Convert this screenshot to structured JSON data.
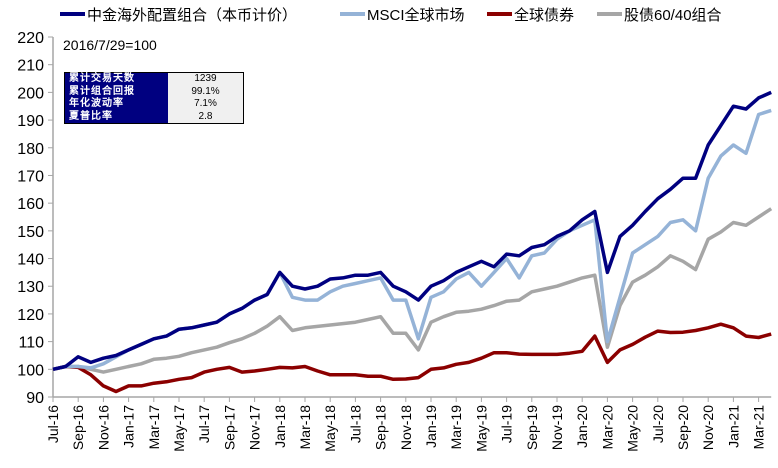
{
  "legend": [
    {
      "label": "中金海外配置组合（本币计价）",
      "color": "#000080"
    },
    {
      "label": "MSCI全球市场",
      "color": "#95b3d7"
    },
    {
      "label": "全球债券",
      "color": "#8b0000"
    },
    {
      "label": "股债60/40组合",
      "color": "#a6a6a6"
    }
  ],
  "annotation": "2016/7/29=100",
  "stats": [
    {
      "label": "累计交易天数",
      "value": "1239"
    },
    {
      "label": "累计组合回报",
      "value": "99.1%"
    },
    {
      "label": "年化波动率",
      "value": "7.1%"
    },
    {
      "label": "夏普比率",
      "value": "2.8"
    }
  ],
  "chart_data": {
    "type": "line",
    "title": "",
    "xlabel": "",
    "ylabel": "",
    "ylim": [
      90,
      220
    ],
    "yticks": [
      "90",
      "100",
      "110",
      "120",
      "130",
      "140",
      "150",
      "160",
      "170",
      "180",
      "190",
      "200",
      "210",
      "220"
    ],
    "xtick_labels": [
      "Jul-16",
      "Sep-16",
      "Nov-16",
      "Jan-17",
      "Mar-17",
      "May-17",
      "Jul-17",
      "Sep-17",
      "Nov-17",
      "Jan-18",
      "Mar-18",
      "May-18",
      "Jul-18",
      "Sep-18",
      "Nov-18",
      "Jan-19",
      "Mar-19",
      "May-19",
      "Jul-19",
      "Sep-19",
      "Nov-19",
      "Jan-20",
      "Mar-20",
      "May-20",
      "Jul-20",
      "Sep-20",
      "Nov-20",
      "Jan-21",
      "Mar-21"
    ],
    "x": [
      "Jul-16",
      "Aug-16",
      "Sep-16",
      "Oct-16",
      "Nov-16",
      "Dec-16",
      "Jan-17",
      "Feb-17",
      "Mar-17",
      "Apr-17",
      "May-17",
      "Jun-17",
      "Jul-17",
      "Aug-17",
      "Sep-17",
      "Oct-17",
      "Nov-17",
      "Dec-17",
      "Jan-18",
      "Feb-18",
      "Mar-18",
      "Apr-18",
      "May-18",
      "Jun-18",
      "Jul-18",
      "Aug-18",
      "Sep-18",
      "Oct-18",
      "Nov-18",
      "Dec-18",
      "Jan-19",
      "Feb-19",
      "Mar-19",
      "Apr-19",
      "May-19",
      "Jun-19",
      "Jul-19",
      "Aug-19",
      "Sep-19",
      "Oct-19",
      "Nov-19",
      "Dec-19",
      "Jan-20",
      "Feb-20",
      "Mar-20",
      "Apr-20",
      "May-20",
      "Jun-20",
      "Jul-20",
      "Aug-20",
      "Sep-20",
      "Oct-20",
      "Nov-20",
      "Dec-20",
      "Jan-21",
      "Feb-21",
      "Mar-21",
      "Apr-21"
    ],
    "grid": false,
    "legend_position": "top",
    "series": [
      {
        "name": "中金海外配置组合（本币计价）",
        "color": "#000080",
        "values": [
          100,
          101,
          104.5,
          102.5,
          104,
          105,
          107,
          109,
          111,
          112,
          114.5,
          115,
          116,
          117,
          120,
          122,
          125,
          127,
          135,
          130,
          129,
          130,
          132.6,
          133,
          134,
          134,
          135,
          130,
          128,
          125,
          130,
          132,
          135,
          137,
          139,
          137,
          141.6,
          141,
          144,
          145,
          148,
          150,
          154,
          157,
          135,
          148,
          152,
          157,
          161.6,
          165,
          169,
          169,
          181,
          188,
          195,
          194,
          198,
          200
        ]
      },
      {
        "name": "MSCI全球市场",
        "color": "#95b3d7",
        "values": [
          100,
          101,
          101,
          100.5,
          102,
          104.5,
          107,
          109,
          111,
          112,
          114.5,
          115,
          116,
          117,
          120,
          122,
          125,
          127,
          135,
          126,
          125,
          125,
          128,
          130,
          131,
          132,
          133,
          125,
          125,
          111,
          126,
          128,
          132.6,
          135,
          130,
          135,
          140,
          133,
          141,
          142,
          147,
          150,
          152,
          154,
          110,
          126,
          142,
          145,
          148,
          153,
          154,
          150,
          169,
          177,
          181,
          178,
          192,
          193.5
        ]
      },
      {
        "name": "全球债券",
        "color": "#8b0000",
        "values": [
          100,
          101,
          100.7,
          98,
          94,
          92,
          94,
          94,
          95,
          95.5,
          96.4,
          97,
          99,
          100,
          100.7,
          99,
          99.4,
          100,
          100.7,
          100.5,
          101,
          99.4,
          98,
          98,
          98,
          97.5,
          97.5,
          96.4,
          96.5,
          97,
          100,
          100.5,
          101.8,
          102.5,
          104,
          106,
          106,
          105.5,
          105.4,
          105.4,
          105.4,
          105.8,
          106.5,
          112,
          102.5,
          107,
          109,
          111.6,
          113.8,
          113.3,
          113.4,
          114,
          115,
          116.3,
          115,
          112,
          111.5,
          112.7
        ]
      },
      {
        "name": "股债60/40组合",
        "color": "#a6a6a6",
        "values": [
          100,
          101,
          101,
          100,
          99,
          100,
          101,
          102,
          103.6,
          104,
          104.7,
          106,
          107,
          108,
          109.6,
          111,
          113,
          115.6,
          119,
          114,
          115,
          115.5,
          116,
          116.5,
          117,
          118,
          119,
          113,
          113,
          107,
          117,
          119,
          120.6,
          121,
          121.7,
          123,
          124.6,
          125,
          128,
          129,
          130,
          131.5,
          133,
          134,
          108,
          123,
          131.5,
          134,
          137,
          141,
          139,
          136,
          147,
          149.6,
          153,
          152,
          155,
          158
        ]
      }
    ]
  }
}
